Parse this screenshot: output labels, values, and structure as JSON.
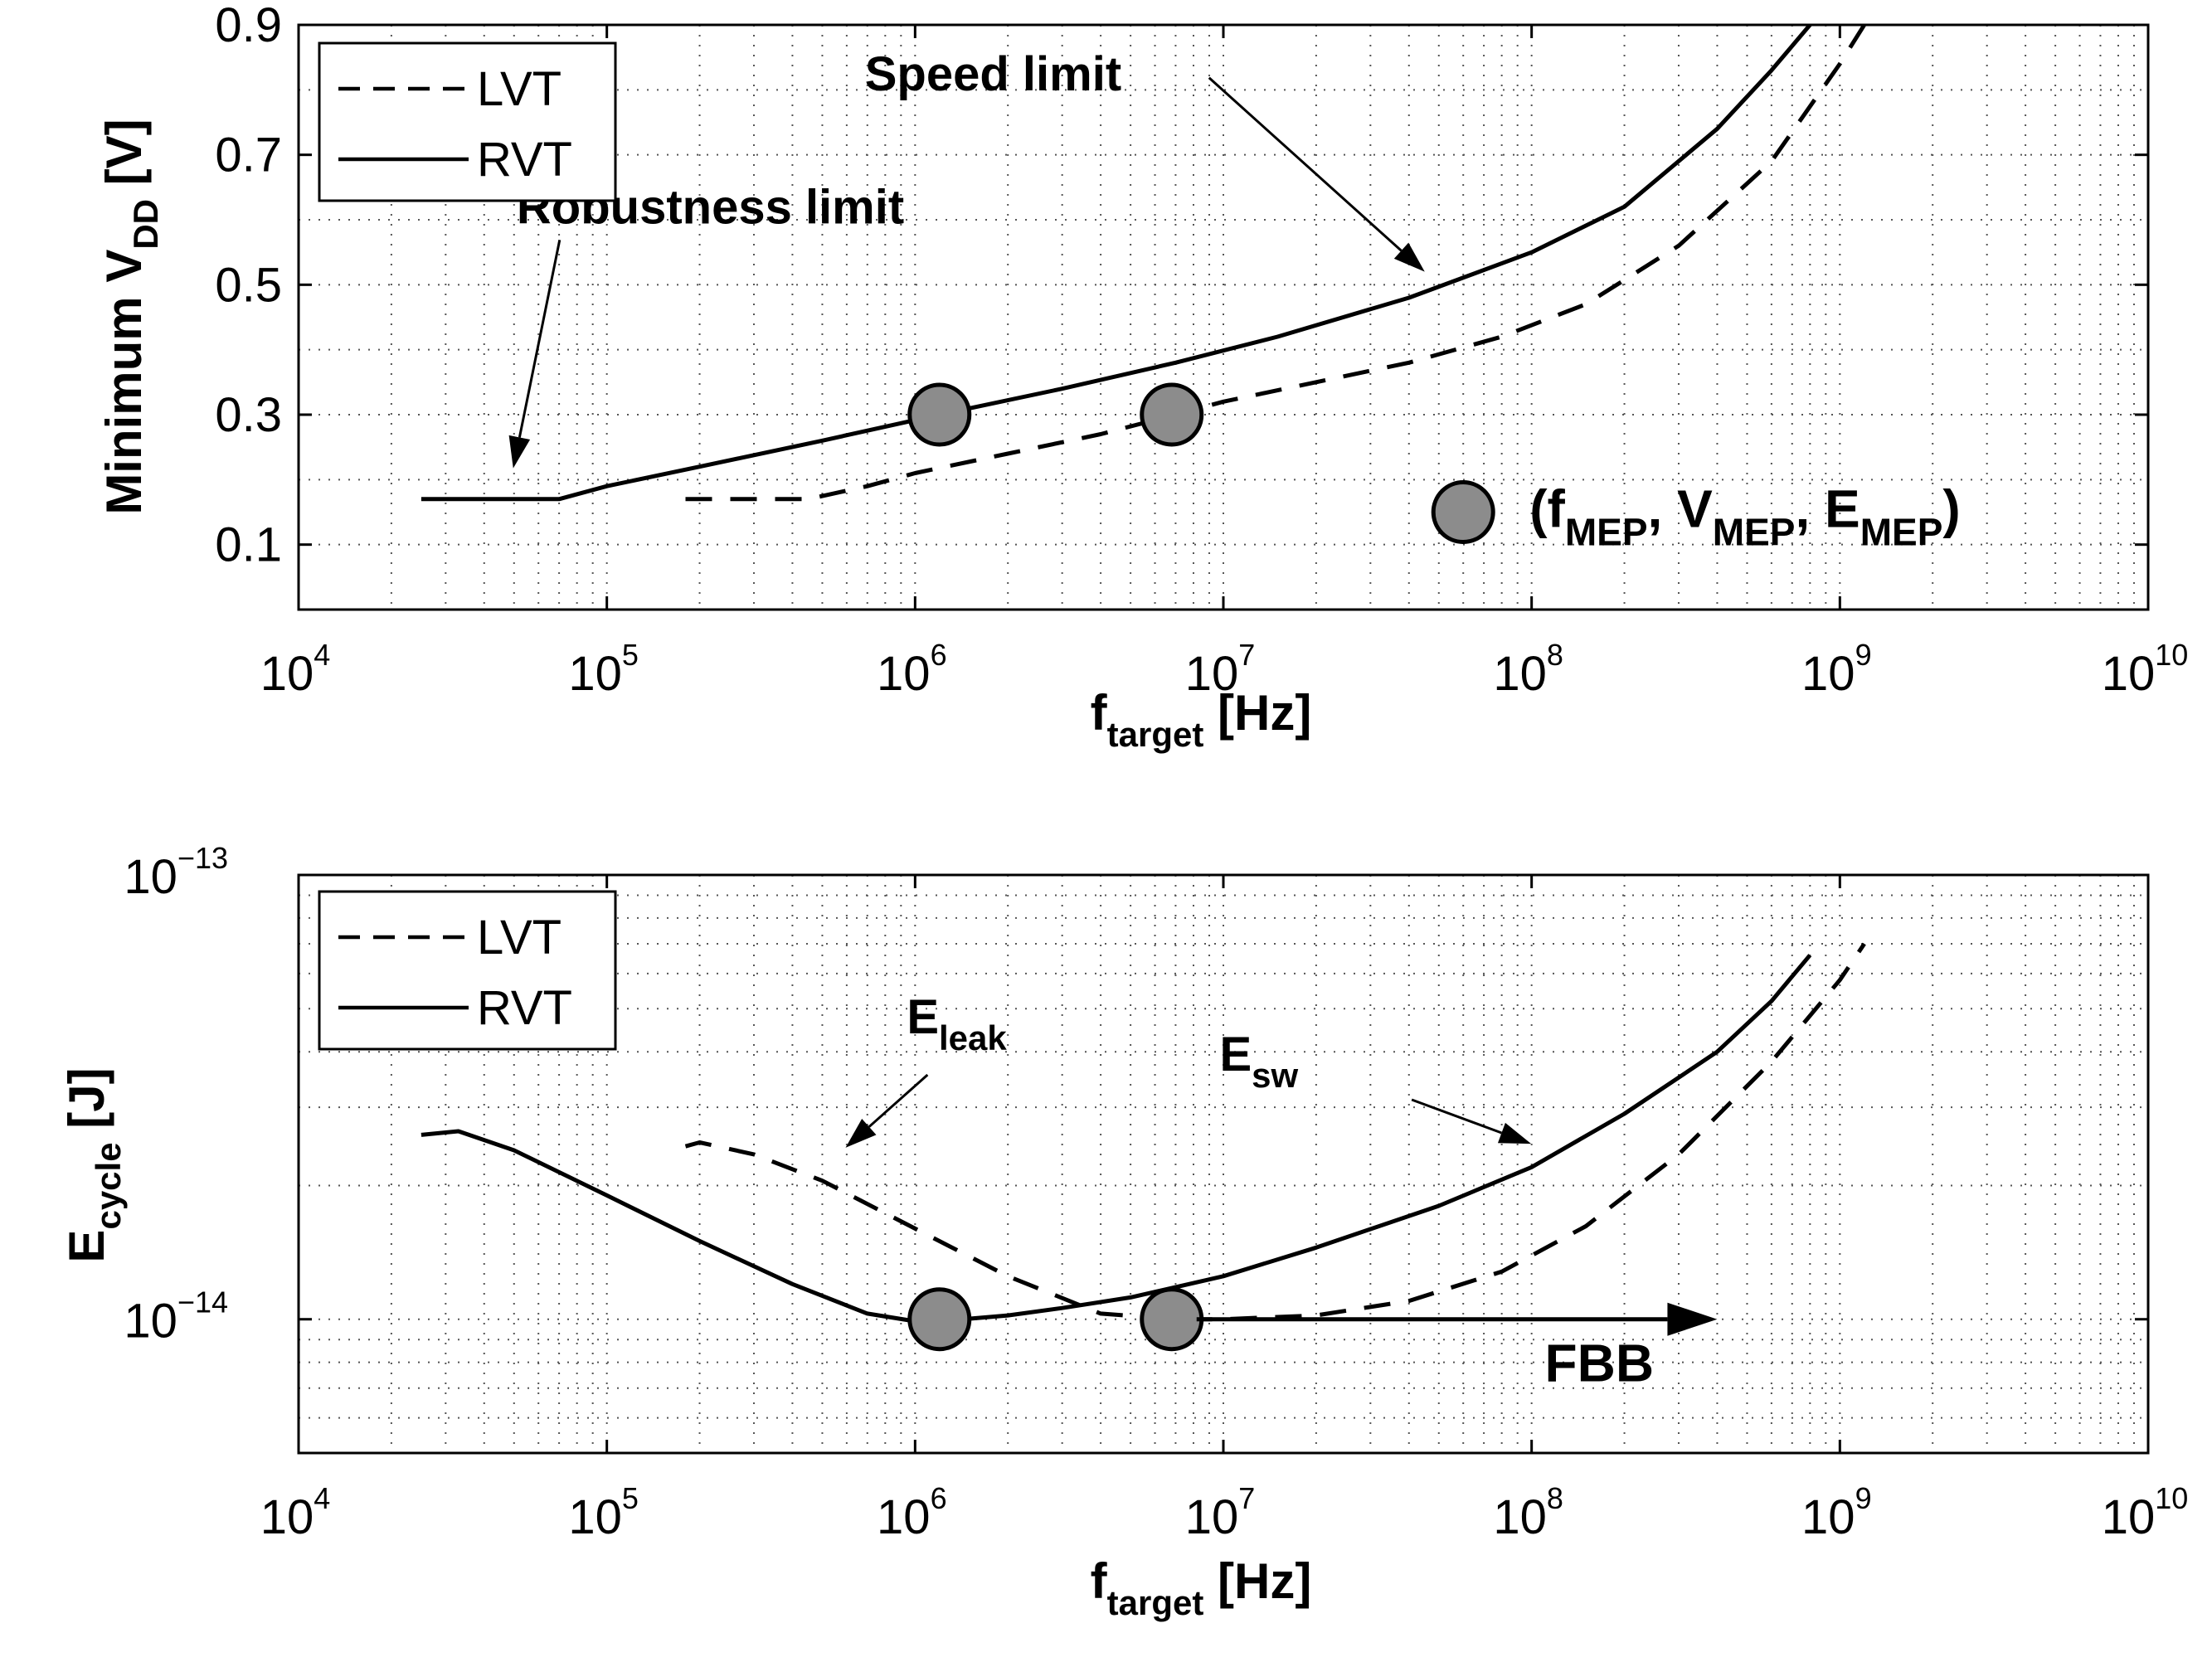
{
  "chart_data": [
    {
      "type": "line",
      "x_scale": "log",
      "xlim": [
        10000,
        10000000000
      ],
      "ylim": [
        0,
        0.9
      ],
      "x_ticks": [
        10000,
        100000,
        1000000,
        10000000,
        100000000,
        1000000000,
        10000000000
      ],
      "x_tick_labels": [
        {
          "base": "10",
          "exp": "4"
        },
        {
          "base": "10",
          "exp": "5"
        },
        {
          "base": "10",
          "exp": "6"
        },
        {
          "base": "10",
          "exp": "7"
        },
        {
          "base": "10",
          "exp": "8"
        },
        {
          "base": "10",
          "exp": "9"
        },
        {
          "base": "10",
          "exp": "10"
        }
      ],
      "y_ticks": [
        0.1,
        0.3,
        0.5,
        0.7,
        0.9
      ],
      "y_tick_labels": [
        "0.1",
        "0.3",
        "0.5",
        "0.7",
        "0.9"
      ],
      "grid": true,
      "xlabel": {
        "main": "f",
        "sub": "target",
        "unit": " [Hz]"
      },
      "ylabel": {
        "main": "Minimum V",
        "sub": "DD",
        "unit": " [V]"
      },
      "legend": {
        "placement": "top-left",
        "entries": [
          {
            "label": "LVT",
            "style": "dashed"
          },
          {
            "label": "RVT",
            "style": "solid"
          }
        ]
      },
      "series": [
        {
          "name": "LVT",
          "style": "dashed",
          "x": [
            180000,
            300000,
            450000,
            700000,
            1000000,
            2000000,
            4000000,
            7000000,
            10000000,
            20000000,
            40000000,
            80000000,
            150000000,
            300000000,
            600000000,
            1000000000,
            1200000000
          ],
          "y": [
            0.17,
            0.17,
            0.17,
            0.19,
            0.21,
            0.24,
            0.27,
            0.3,
            0.32,
            0.35,
            0.38,
            0.42,
            0.47,
            0.56,
            0.69,
            0.84,
            0.9
          ]
        },
        {
          "name": "RVT",
          "style": "solid",
          "x": [
            25000,
            40000,
            70000,
            100000,
            200000,
            500000,
            1200000,
            3000000,
            7000000,
            15000000,
            40000000,
            100000000,
            200000000,
            400000000,
            600000000,
            800000000
          ],
          "y": [
            0.17,
            0.17,
            0.17,
            0.19,
            0.22,
            0.26,
            0.3,
            0.34,
            0.38,
            0.42,
            0.48,
            0.55,
            0.62,
            0.74,
            0.83,
            0.9
          ]
        }
      ],
      "mep_points": [
        {
          "x": 1200000,
          "y": 0.3
        },
        {
          "x": 6800000,
          "y": 0.3
        }
      ],
      "annotations": [
        {
          "text": "Speed limit",
          "x": 1200000,
          "y": 0.825,
          "arrow_to_x": 45000000,
          "arrow_to_y": 0.52
        },
        {
          "text": "Robustness limit",
          "x": 25000,
          "y": 0.62,
          "arrow_to_x": 50000,
          "arrow_to_y": 0.22
        }
      ],
      "mep_legend": {
        "marker_x": 60000000,
        "marker_y": 0.15,
        "parts": [
          {
            "t": "(f"
          },
          {
            "s": "MEP"
          },
          {
            "t": ", V"
          },
          {
            "s": "MEP"
          },
          {
            "t": ", E"
          },
          {
            "s": "MEP"
          },
          {
            "t": ")"
          }
        ]
      }
    },
    {
      "type": "line",
      "x_scale": "log",
      "y_scale": "log",
      "xlim": [
        10000,
        10000000000
      ],
      "ylim": [
        5e-15,
        1e-13
      ],
      "x_ticks": [
        10000,
        100000,
        1000000,
        10000000,
        100000000,
        1000000000,
        10000000000
      ],
      "x_tick_labels": [
        {
          "base": "10",
          "exp": "4"
        },
        {
          "base": "10",
          "exp": "5"
        },
        {
          "base": "10",
          "exp": "6"
        },
        {
          "base": "10",
          "exp": "7"
        },
        {
          "base": "10",
          "exp": "8"
        },
        {
          "base": "10",
          "exp": "9"
        },
        {
          "base": "10",
          "exp": "10"
        }
      ],
      "y_ticks": [
        1e-14,
        1e-13
      ],
      "y_tick_labels": [
        {
          "base": "10",
          "exp": "−14"
        },
        {
          "base": "10",
          "exp": "−13"
        }
      ],
      "grid": true,
      "xlabel": {
        "main": "f",
        "sub": "target",
        "unit": " [Hz]"
      },
      "ylabel": {
        "main": "E",
        "sub": "cycle",
        "unit": " [J]"
      },
      "legend": {
        "placement": "top-left",
        "entries": [
          {
            "label": "LVT",
            "style": "dashed"
          },
          {
            "label": "RVT",
            "style": "solid"
          }
        ]
      },
      "series": [
        {
          "name": "LVT",
          "style": "dashed",
          "x": [
            180000,
            200000,
            300000,
            500000,
            1000000,
            2000000,
            4000000,
            7000000,
            10000000,
            20000000,
            40000000,
            80000000,
            150000000,
            300000000,
            600000000,
            1000000000,
            1200000000
          ],
          "y": [
            2.45e-14,
            2.5e-14,
            2.35e-14,
            2.05e-14,
            1.6e-14,
            1.25e-14,
            1.03e-14,
            1e-14,
            1e-14,
            1.02e-14,
            1.1e-14,
            1.28e-14,
            1.62e-14,
            2.35e-14,
            3.8e-14,
            5.8e-14,
            7e-14
          ]
        },
        {
          "name": "RVT",
          "style": "solid",
          "x": [
            25000,
            33000,
            50000,
            100000,
            200000,
            400000,
            700000,
            1000000,
            1200000,
            2000000,
            3000000,
            5000000,
            10000000,
            20000000,
            50000000,
            100000000,
            200000000,
            400000000,
            600000000,
            800000000
          ],
          "y": [
            2.6e-14,
            2.65e-14,
            2.4e-14,
            1.9e-14,
            1.5e-14,
            1.2e-14,
            1.03e-14,
            9.9e-15,
            9.9e-15,
            1.02e-14,
            1.06e-14,
            1.12e-14,
            1.25e-14,
            1.45e-14,
            1.8e-14,
            2.2e-14,
            2.9e-14,
            4e-14,
            5.2e-14,
            6.6e-14
          ]
        }
      ],
      "mep_points": [
        {
          "x": 1200000,
          "y": 1e-14
        },
        {
          "x": 6800000,
          "y": 1e-14
        }
      ],
      "fbb_arrow": {
        "from_x": 6800000,
        "to_x": 400000000,
        "y": 1e-14
      },
      "annotations": [
        {
          "text": "FBB",
          "x": 160000000,
          "y": 7.9e-15
        },
        {
          "parts": [
            {
              "t": "E"
            },
            {
              "s": "leak"
            }
          ],
          "x": 1000000,
          "y": 4.8e-14,
          "arrow_from_x": 1000000,
          "arrow_from_y": 3.4e-14,
          "arrow_to_x": 450000,
          "arrow_to_y": 2.35e-14
        },
        {
          "parts": [
            {
              "t": "E"
            },
            {
              "s": "sw"
            }
          ],
          "x": 43000000,
          "y": 3.95e-14,
          "arrow_from_x": 65000000,
          "arrow_from_y": 3.4e-14,
          "arrow_to_x": 120000000,
          "arrow_to_y": 2.8e-14
        }
      ]
    }
  ]
}
